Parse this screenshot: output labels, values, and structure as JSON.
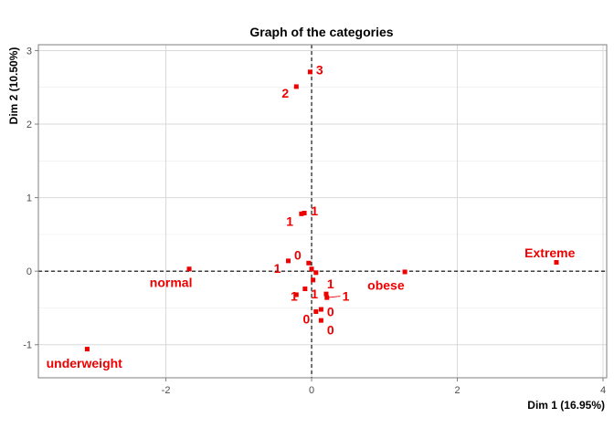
{
  "chart_data": {
    "type": "scatter",
    "title": "Graph of the categories",
    "xlabel": "Dim 1 (16.95%)",
    "ylabel": "Dim 2 (10.50%)",
    "xlim": [
      -3.75,
      4.05
    ],
    "ylim": [
      -1.45,
      3.08
    ],
    "xticks": [
      -2,
      0,
      2,
      4
    ],
    "yticks": [
      -1,
      0,
      1,
      2,
      3
    ],
    "xtick_labels": [
      "-2",
      "0",
      "2",
      "4"
    ],
    "ytick_labels": [
      "-1",
      "0",
      "1",
      "2",
      "3"
    ],
    "grid": true,
    "reference_lines": {
      "x": 0,
      "y": 0
    },
    "color": "#ee0000",
    "points": [
      {
        "x": -0.02,
        "y": 2.71,
        "label": "3",
        "label_x": 0.11,
        "label_y": 2.74
      },
      {
        "x": -0.21,
        "y": 2.51,
        "label": "2",
        "label_x": -0.36,
        "label_y": 2.42
      },
      {
        "x": -0.1,
        "y": 0.79,
        "label": "1",
        "label_x": 0.04,
        "label_y": 0.82
      },
      {
        "x": -0.14,
        "y": 0.78,
        "label": "1",
        "label_x": -0.3,
        "label_y": 0.68
      },
      {
        "x": -0.32,
        "y": 0.14,
        "label": "0",
        "label_x": -0.19,
        "label_y": 0.22
      },
      {
        "x": -0.04,
        "y": 0.11,
        "label": "",
        "label_x": null,
        "label_y": null
      },
      {
        "x": 0.0,
        "y": 0.03,
        "label": "1",
        "label_x": -0.47,
        "label_y": 0.04
      },
      {
        "x": 0.06,
        "y": -0.02,
        "label": "",
        "label_x": null,
        "label_y": null
      },
      {
        "x": 0.02,
        "y": -0.12,
        "label": "1",
        "label_x": 0.26,
        "label_y": -0.17
      },
      {
        "x": -0.09,
        "y": -0.24,
        "label": "1",
        "label_x": 0.04,
        "label_y": -0.31
      },
      {
        "x": 0.2,
        "y": -0.31,
        "label": "",
        "label_x": null,
        "label_y": null
      },
      {
        "x": 0.21,
        "y": -0.36,
        "label": "1",
        "label_x": 0.47,
        "label_y": -0.34,
        "leader": true
      },
      {
        "x": -0.21,
        "y": -0.32,
        "label": "1",
        "label_x": -0.24,
        "label_y": -0.34
      },
      {
        "x": 0.13,
        "y": -0.52,
        "label": "0",
        "label_x": 0.26,
        "label_y": -0.55
      },
      {
        "x": 0.06,
        "y": -0.55,
        "label": "0",
        "label_x": -0.07,
        "label_y": -0.65
      },
      {
        "x": 0.13,
        "y": -0.67,
        "label": "0",
        "label_x": 0.26,
        "label_y": -0.8
      },
      {
        "x": -1.68,
        "y": 0.03,
        "label": "normal",
        "label_x": -1.93,
        "label_y": -0.15
      },
      {
        "x": 1.28,
        "y": -0.01,
        "label": "obese",
        "label_x": 1.02,
        "label_y": -0.19
      },
      {
        "x": 3.36,
        "y": 0.12,
        "label": "Extreme",
        "label_x": 3.27,
        "label_y": 0.25
      },
      {
        "x": -3.08,
        "y": -1.06,
        "label": "underweight",
        "label_x": -3.12,
        "label_y": -1.25
      }
    ]
  }
}
